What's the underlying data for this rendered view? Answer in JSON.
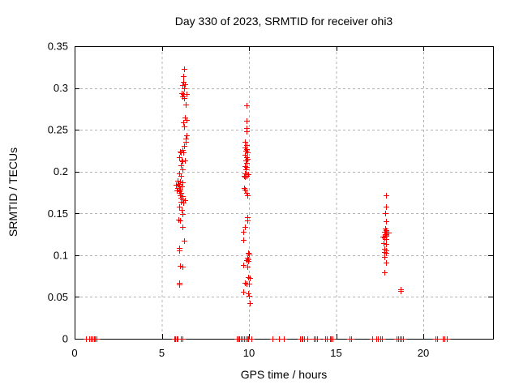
{
  "chart": {
    "title": "Day 330 of 2023, SRMTID for receiver ohi3",
    "xlabel": "GPS time / hours",
    "ylabel": "SRMTID / TECUs"
  },
  "chart_data": {
    "type": "scatter",
    "title": "Day 330 of 2023, SRMTID for receiver ohi3",
    "xlabel": "GPS time / hours",
    "ylabel": "SRMTID / TECUs",
    "xlim": [
      0,
      24
    ],
    "ylim": [
      0,
      0.35
    ],
    "x_ticks": [
      {
        "v": 0,
        "label": "0"
      },
      {
        "v": 5,
        "label": "5"
      },
      {
        "v": 10,
        "label": "10"
      },
      {
        "v": 15,
        "label": "15"
      },
      {
        "v": 20,
        "label": "20"
      }
    ],
    "y_ticks": [
      {
        "v": 0,
        "label": "0"
      },
      {
        "v": 0.05,
        "label": "0.05"
      },
      {
        "v": 0.1,
        "label": "0.1"
      },
      {
        "v": 0.15,
        "label": "0.15"
      },
      {
        "v": 0.2,
        "label": "0.2"
      },
      {
        "v": 0.25,
        "label": "0.25"
      },
      {
        "v": 0.3,
        "label": "0.3"
      },
      {
        "v": 0.35,
        "label": "0.35"
      }
    ],
    "grid": true,
    "legend": "none",
    "marker": "plus",
    "marker_color": "#ff0000",
    "grid_color": "#b3b3b3",
    "border_color": "#000000",
    "series": [
      {
        "name": "SRMTID",
        "points": [
          [
            6.26,
            0.323
          ],
          [
            6.21,
            0.314
          ],
          [
            6.25,
            0.3075
          ],
          [
            6.33,
            0.3045
          ],
          [
            6.2,
            0.3035
          ],
          [
            6.26,
            0.2995
          ],
          [
            6.15,
            0.294
          ],
          [
            6.22,
            0.293
          ],
          [
            6.42,
            0.2925
          ],
          [
            6.17,
            0.2895
          ],
          [
            6.29,
            0.288
          ],
          [
            6.36,
            0.2805
          ],
          [
            6.31,
            0.2645
          ],
          [
            6.4,
            0.2618
          ],
          [
            6.25,
            0.259
          ],
          [
            6.28,
            0.2545
          ],
          [
            6.42,
            0.243
          ],
          [
            6.36,
            0.2395
          ],
          [
            6.38,
            0.2355
          ],
          [
            6.29,
            0.2305
          ],
          [
            6.17,
            0.226
          ],
          [
            6.05,
            0.2235
          ],
          [
            6.11,
            0.2233
          ],
          [
            6.23,
            0.2227
          ],
          [
            5.99,
            0.2169
          ],
          [
            6.14,
            0.2136
          ],
          [
            6.34,
            0.213
          ],
          [
            6.2,
            0.2123
          ],
          [
            6.11,
            0.2072
          ],
          [
            6.2,
            0.2023
          ],
          [
            6.01,
            0.1978
          ],
          [
            6.11,
            0.1946
          ],
          [
            5.89,
            0.1891
          ],
          [
            6.05,
            0.1878
          ],
          [
            6.17,
            0.1871
          ],
          [
            5.95,
            0.1852
          ],
          [
            5.83,
            0.1839
          ],
          [
            6.01,
            0.183
          ],
          [
            6.14,
            0.182
          ],
          [
            5.92,
            0.18
          ],
          [
            6.05,
            0.1787
          ],
          [
            5.86,
            0.1774
          ],
          [
            5.98,
            0.1762
          ],
          [
            6.11,
            0.1748
          ],
          [
            6.05,
            0.1716
          ],
          [
            6.17,
            0.1703
          ],
          [
            6.08,
            0.1684
          ],
          [
            6.2,
            0.167
          ],
          [
            6.33,
            0.1658
          ],
          [
            6.11,
            0.1638
          ],
          [
            6.23,
            0.1626
          ],
          [
            6.01,
            0.158
          ],
          [
            6.14,
            0.1542
          ],
          [
            6.2,
            0.149
          ],
          [
            5.95,
            0.1425
          ],
          [
            6.05,
            0.1413
          ],
          [
            6.17,
            0.1341
          ],
          [
            6.26,
            0.1176
          ],
          [
            5.99,
            0.1086
          ],
          [
            6.02,
            0.106
          ],
          [
            6.05,
            0.0873
          ],
          [
            6.17,
            0.0863
          ],
          [
            5.99,
            0.0669
          ],
          [
            6.01,
            0.0653
          ],
          [
            9.86,
            0.279
          ],
          [
            9.86,
            0.2605
          ],
          [
            9.86,
            0.2518
          ],
          [
            9.87,
            0.2485
          ],
          [
            9.78,
            0.2356
          ],
          [
            9.84,
            0.2317
          ],
          [
            9.78,
            0.2291
          ],
          [
            9.87,
            0.2272
          ],
          [
            9.81,
            0.2246
          ],
          [
            9.91,
            0.2227
          ],
          [
            9.78,
            0.2201
          ],
          [
            9.84,
            0.2175
          ],
          [
            9.91,
            0.2155
          ],
          [
            9.81,
            0.213
          ],
          [
            9.87,
            0.2104
          ],
          [
            9.78,
            0.2065
          ],
          [
            9.87,
            0.2053
          ],
          [
            9.81,
            0.2023
          ],
          [
            9.75,
            0.1981
          ],
          [
            9.84,
            0.1968
          ],
          [
            9.97,
            0.1968
          ],
          [
            9.72,
            0.1949
          ],
          [
            9.87,
            0.1949
          ],
          [
            9.78,
            0.1936
          ],
          [
            9.71,
            0.1807
          ],
          [
            9.75,
            0.1787
          ],
          [
            9.85,
            0.1748
          ],
          [
            9.91,
            0.1716
          ],
          [
            9.91,
            0.1451
          ],
          [
            9.91,
            0.1419
          ],
          [
            9.75,
            0.1338
          ],
          [
            9.69,
            0.1283
          ],
          [
            9.69,
            0.1186
          ],
          [
            9.94,
            0.1024
          ],
          [
            10.0,
            0.1018
          ],
          [
            9.91,
            0.0972
          ],
          [
            9.94,
            0.0953
          ],
          [
            9.88,
            0.0943
          ],
          [
            9.97,
            0.0934
          ],
          [
            9.69,
            0.0882
          ],
          [
            9.91,
            0.0863
          ],
          [
            9.97,
            0.074
          ],
          [
            10.03,
            0.0724
          ],
          [
            9.75,
            0.0669
          ],
          [
            9.87,
            0.0662
          ],
          [
            10.0,
            0.0656
          ],
          [
            9.69,
            0.0562
          ],
          [
            9.94,
            0.054
          ],
          [
            10.0,
            0.0514
          ],
          [
            10.06,
            0.0424
          ],
          [
            17.85,
            0.1719
          ],
          [
            17.85,
            0.1577
          ],
          [
            17.81,
            0.15
          ],
          [
            17.85,
            0.1403
          ],
          [
            17.81,
            0.1322
          ],
          [
            17.88,
            0.13
          ],
          [
            17.78,
            0.128
          ],
          [
            18.0,
            0.1273
          ],
          [
            17.91,
            0.1267
          ],
          [
            17.81,
            0.1248
          ],
          [
            17.88,
            0.1228
          ],
          [
            17.66,
            0.1225
          ],
          [
            17.75,
            0.1209
          ],
          [
            17.85,
            0.1196
          ],
          [
            17.72,
            0.1144
          ],
          [
            17.88,
            0.1131
          ],
          [
            17.75,
            0.1073
          ],
          [
            17.85,
            0.106
          ],
          [
            17.78,
            0.104
          ],
          [
            17.88,
            0.1028
          ],
          [
            17.75,
            0.0976
          ],
          [
            17.85,
            0.0911
          ],
          [
            17.78,
            0.0795
          ],
          [
            18.68,
            0.0594
          ],
          [
            18.71,
            0.0569
          ],
          [
            0.65,
            0
          ],
          [
            0.84,
            0
          ],
          [
            0.95,
            0
          ],
          [
            1.03,
            0
          ],
          [
            1.1,
            0
          ],
          [
            1.18,
            0
          ],
          [
            1.25,
            0
          ],
          [
            5.7,
            0
          ],
          [
            5.77,
            0
          ],
          [
            5.84,
            0
          ],
          [
            5.91,
            0
          ],
          [
            6.11,
            0
          ],
          [
            6.2,
            0
          ],
          [
            9.3,
            0
          ],
          [
            9.38,
            0
          ],
          [
            9.46,
            0
          ],
          [
            9.54,
            0
          ],
          [
            9.62,
            0
          ],
          [
            9.73,
            0
          ],
          [
            9.81,
            0
          ],
          [
            9.89,
            0
          ],
          [
            9.96,
            0
          ],
          [
            10.15,
            0
          ],
          [
            11.36,
            0
          ],
          [
            11.73,
            0
          ],
          [
            12.01,
            0
          ],
          [
            12.92,
            0
          ],
          [
            13.0,
            0
          ],
          [
            13.09,
            0
          ],
          [
            13.18,
            0
          ],
          [
            13.35,
            0
          ],
          [
            13.73,
            0
          ],
          [
            13.82,
            0
          ],
          [
            13.91,
            0
          ],
          [
            14.39,
            0
          ],
          [
            14.48,
            0
          ],
          [
            14.64,
            0
          ],
          [
            14.72,
            0
          ],
          [
            14.79,
            0
          ],
          [
            15.75,
            0
          ],
          [
            15.84,
            0
          ],
          [
            17.08,
            0
          ],
          [
            17.32,
            0
          ],
          [
            17.41,
            0
          ],
          [
            17.55,
            0
          ],
          [
            17.63,
            0
          ],
          [
            18.45,
            0
          ],
          [
            18.54,
            0
          ],
          [
            18.63,
            0
          ],
          [
            18.76,
            0
          ],
          [
            18.85,
            0
          ],
          [
            20.7,
            0
          ],
          [
            20.81,
            0
          ],
          [
            21.12,
            0
          ],
          [
            21.22,
            0
          ],
          [
            21.33,
            0
          ]
        ]
      }
    ]
  }
}
